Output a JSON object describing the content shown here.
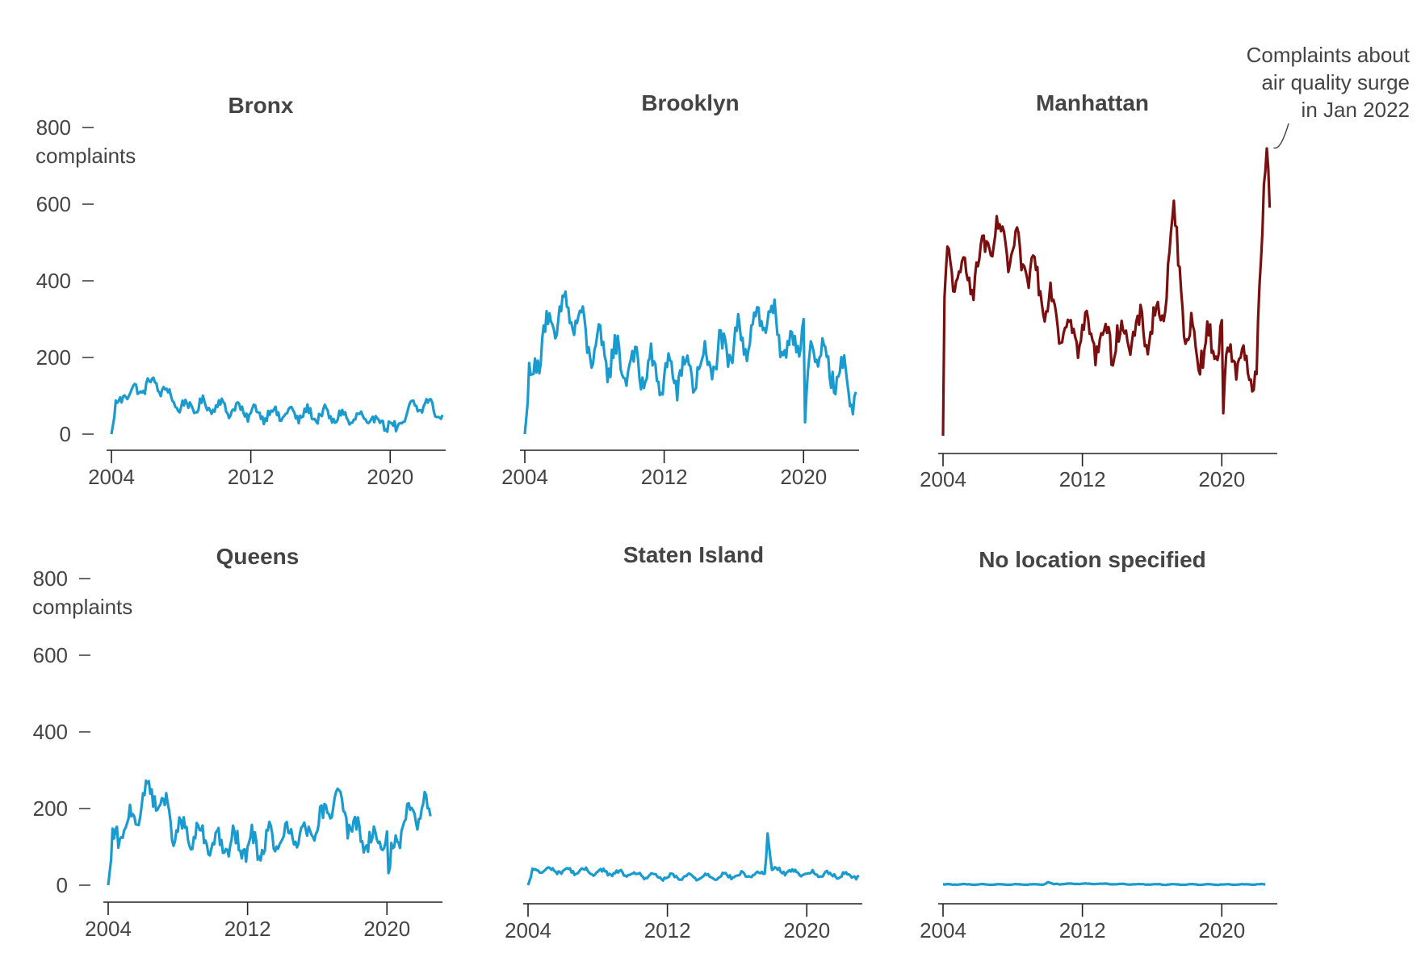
{
  "chart_data": {
    "type": "line",
    "layout": "small-multiples",
    "x_ticks": [
      2004,
      2012,
      2020
    ],
    "y_ticks": [
      0,
      200,
      400,
      600,
      800
    ],
    "y_top_unit": "complaints",
    "xlim": [
      2004,
      2023
    ],
    "ylim": [
      0,
      800
    ],
    "colors": {
      "default": "#1a9bd0",
      "highlight": "#7a0f0f"
    },
    "panels": [
      {
        "title": "Bronx",
        "color": "default",
        "show_y_axis": true,
        "baseline": 55,
        "amplitude": 20,
        "points": [
          [
            2004,
            0
          ],
          [
            2004.3,
            80
          ],
          [
            2004.7,
            100
          ],
          [
            2006.5,
            135
          ],
          [
            2008,
            70
          ],
          [
            2010,
            75
          ],
          [
            2012,
            55
          ],
          [
            2016,
            50
          ],
          [
            2020,
            30
          ],
          [
            2020.3,
            5
          ],
          [
            2021,
            60
          ],
          [
            2022,
            80
          ],
          [
            2023,
            50
          ]
        ]
      },
      {
        "title": "Brooklyn",
        "color": "default",
        "show_y_axis": false,
        "baseline": 180,
        "amplitude": 55,
        "points": [
          [
            2004,
            0
          ],
          [
            2004.3,
            150
          ],
          [
            2005,
            250
          ],
          [
            2006.5,
            330
          ],
          [
            2008,
            220
          ],
          [
            2010,
            180
          ],
          [
            2012,
            150
          ],
          [
            2014,
            170
          ],
          [
            2016,
            230
          ],
          [
            2018,
            320
          ],
          [
            2019,
            200
          ],
          [
            2020,
            300
          ],
          [
            2020.05,
            15
          ],
          [
            2020.5,
            230
          ],
          [
            2022,
            150
          ],
          [
            2023,
            110
          ]
        ]
      },
      {
        "title": "Manhattan",
        "color": "highlight",
        "show_y_axis": false,
        "baseline": 300,
        "amplitude": 55,
        "points": [
          [
            2004,
            0
          ],
          [
            2004.1,
            430
          ],
          [
            2005.5,
            410
          ],
          [
            2007,
            520
          ],
          [
            2009,
            430
          ],
          [
            2011,
            280
          ],
          [
            2013,
            250
          ],
          [
            2015,
            260
          ],
          [
            2016.5,
            300
          ],
          [
            2017.3,
            560
          ],
          [
            2018,
            250
          ],
          [
            2019.5,
            220
          ],
          [
            2020,
            300
          ],
          [
            2020.1,
            10
          ],
          [
            2020.3,
            230
          ],
          [
            2021,
            200
          ],
          [
            2022,
            160
          ],
          [
            2022.3,
            500
          ],
          [
            2022.6,
            760
          ],
          [
            2022.8,
            600
          ]
        ]
      },
      {
        "title": "Queens",
        "color": "default",
        "show_y_axis": true,
        "baseline": 130,
        "amplitude": 40,
        "points": [
          [
            2004,
            0
          ],
          [
            2004.3,
            120
          ],
          [
            2005,
            150
          ],
          [
            2006.5,
            250
          ],
          [
            2008,
            140
          ],
          [
            2010,
            110
          ],
          [
            2012,
            100
          ],
          [
            2014,
            120
          ],
          [
            2016,
            140
          ],
          [
            2017.2,
            255
          ],
          [
            2018,
            140
          ],
          [
            2019.5,
            110
          ],
          [
            2020,
            140
          ],
          [
            2020.1,
            10
          ],
          [
            2020.5,
            130
          ],
          [
            2022,
            200
          ],
          [
            2022.5,
            180
          ]
        ]
      },
      {
        "title": "Staten Island",
        "color": "default",
        "show_y_axis": false,
        "baseline": 28,
        "amplitude": 8,
        "points": [
          [
            2004,
            0
          ],
          [
            2004.3,
            40
          ],
          [
            2008,
            35
          ],
          [
            2012,
            20
          ],
          [
            2016,
            25
          ],
          [
            2017.6,
            30
          ],
          [
            2017.75,
            135
          ],
          [
            2018,
            40
          ],
          [
            2020,
            30
          ],
          [
            2023,
            25
          ]
        ]
      },
      {
        "title": "No location specified",
        "color": "default",
        "show_y_axis": false,
        "baseline": 2,
        "amplitude": 1,
        "points": [
          [
            2004,
            2
          ],
          [
            2009.8,
            2
          ],
          [
            2010,
            8
          ],
          [
            2010.3,
            3
          ],
          [
            2012,
            4
          ],
          [
            2016,
            2
          ],
          [
            2022.5,
            2
          ]
        ]
      }
    ],
    "annotation": {
      "panel": "Manhattan",
      "lines": [
        "Complaints about",
        "air quality surge",
        "in Jan 2022"
      ],
      "target": [
        2022.7,
        760
      ]
    }
  }
}
